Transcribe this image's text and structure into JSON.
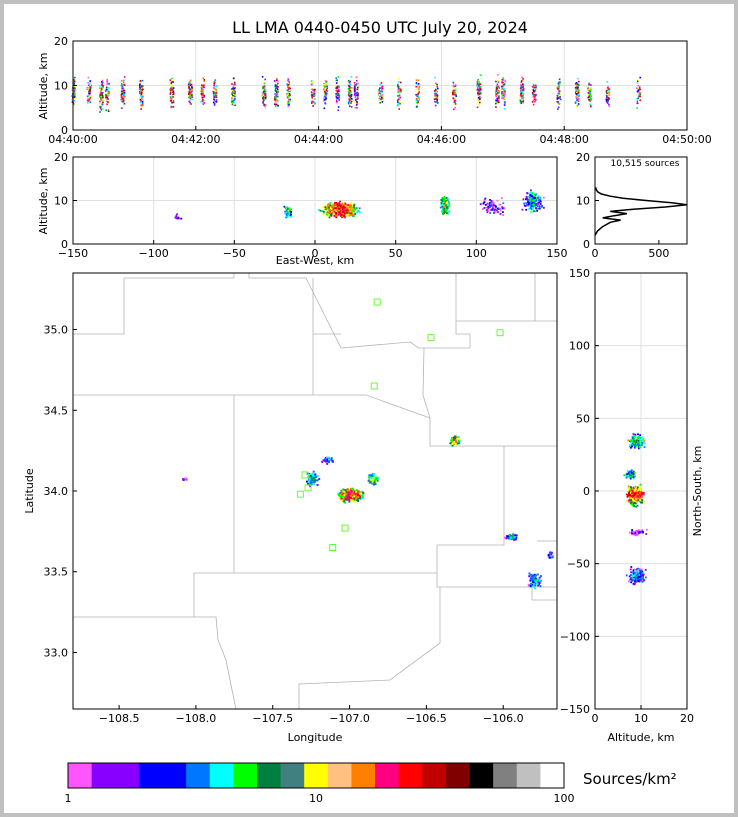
{
  "title": "LL LMA 0440-0450 UTC July 20, 2024",
  "colorbar": {
    "unit": "Sources/km²",
    "ticks": [
      "1",
      "10",
      "100"
    ],
    "colors": [
      "#ff55ff",
      "#8800ff",
      "#8800ff",
      "#0000ff",
      "#0000ff",
      "#0077ff",
      "#00ffff",
      "#00ff00",
      "#008040",
      "#408080",
      "#ffff00",
      "#ffc080",
      "#ff8000",
      "#ff0080",
      "#ff0000",
      "#c00000",
      "#800000",
      "#000000",
      "#808080",
      "#c0c0c0",
      "#ffffff"
    ]
  },
  "chart_data": [
    {
      "panel": "time-altitude",
      "type": "scatter",
      "xlabel": "",
      "ylabel": "Altitude, km",
      "xlim": [
        "04:40:00",
        "04:50:00"
      ],
      "ylim": [
        0,
        20
      ],
      "x_ticks": [
        "04:40:00",
        "04:42:00",
        "04:44:00",
        "04:46:00",
        "04:48:00",
        "04:50:00"
      ],
      "y_ticks": [
        "0",
        "10",
        "20"
      ],
      "grid": true,
      "bursts_minutes": [
        0.0,
        0.25,
        0.45,
        0.55,
        0.8,
        1.1,
        1.6,
        1.9,
        2.1,
        2.3,
        2.6,
        3.1,
        3.3,
        3.5,
        3.9,
        4.1,
        4.3,
        4.5,
        4.6,
        5.0,
        5.3,
        5.6,
        5.9,
        6.2,
        6.6,
        6.9,
        7.0,
        7.3,
        7.5,
        7.9,
        8.2,
        8.4,
        8.7,
        9.2
      ]
    },
    {
      "panel": "eastwest-altitude",
      "type": "scatter",
      "xlabel": "East-West, km",
      "ylabel": "Altitude, km",
      "xlim": [
        -150,
        150
      ],
      "ylim": [
        0,
        20
      ],
      "x_ticks": [
        "−150",
        "−100",
        "−50",
        "0",
        "50",
        "100",
        "150"
      ],
      "y_ticks": [
        "0",
        "10",
        "20"
      ],
      "grid": true
    },
    {
      "panel": "altitude-histogram",
      "type": "line",
      "annotation": "10,515 sources",
      "xlim": [
        0,
        720
      ],
      "ylim": [
        0,
        20
      ],
      "x_ticks": [
        "0",
        "500"
      ],
      "y_ticks": [
        "0",
        "10",
        "20"
      ],
      "profile": [
        [
          0,
          2
        ],
        [
          20,
          3
        ],
        [
          60,
          4
        ],
        [
          120,
          5
        ],
        [
          200,
          5.5
        ],
        [
          60,
          6
        ],
        [
          150,
          6.5
        ],
        [
          250,
          7
        ],
        [
          120,
          7.5
        ],
        [
          300,
          8
        ],
        [
          550,
          8.5
        ],
        [
          720,
          9
        ],
        [
          600,
          9.5
        ],
        [
          400,
          10
        ],
        [
          220,
          10.5
        ],
        [
          120,
          11
        ],
        [
          50,
          11.5
        ],
        [
          20,
          12
        ],
        [
          10,
          12.5
        ],
        [
          5,
          13
        ]
      ]
    },
    {
      "panel": "plan-view",
      "type": "scatter",
      "xlabel": "Longitude",
      "ylabel": "Latitude",
      "xlim": [
        -108.8,
        -105.65
      ],
      "ylim": [
        32.65,
        35.35
      ],
      "x_ticks": [
        "−108.5",
        "−108.0",
        "−107.5",
        "−107.0",
        "−106.5",
        "−106.0"
      ],
      "y_ticks": [
        "33.0",
        "33.5",
        "34.0",
        "34.5",
        "35.0"
      ],
      "stations": [
        [
          -106.82,
          35.17
        ],
        [
          -106.47,
          34.95
        ],
        [
          -106.02,
          34.98
        ],
        [
          -106.84,
          34.65
        ],
        [
          -107.29,
          34.1
        ],
        [
          -107.27,
          34.02
        ],
        [
          -107.32,
          33.98
        ],
        [
          -107.03,
          33.77
        ],
        [
          -107.11,
          33.65
        ]
      ]
    },
    {
      "panel": "altitude-northsouth",
      "type": "scatter",
      "xlabel": "Altitude, km",
      "ylabel": "North-South, km",
      "xlim": [
        0,
        20
      ],
      "ylim": [
        -150,
        150
      ],
      "x_ticks": [
        "0",
        "10",
        "20"
      ],
      "y_ticks": [
        "−150",
        "−100",
        "−50",
        "0",
        "50",
        "100",
        "150"
      ],
      "grid": true
    }
  ]
}
